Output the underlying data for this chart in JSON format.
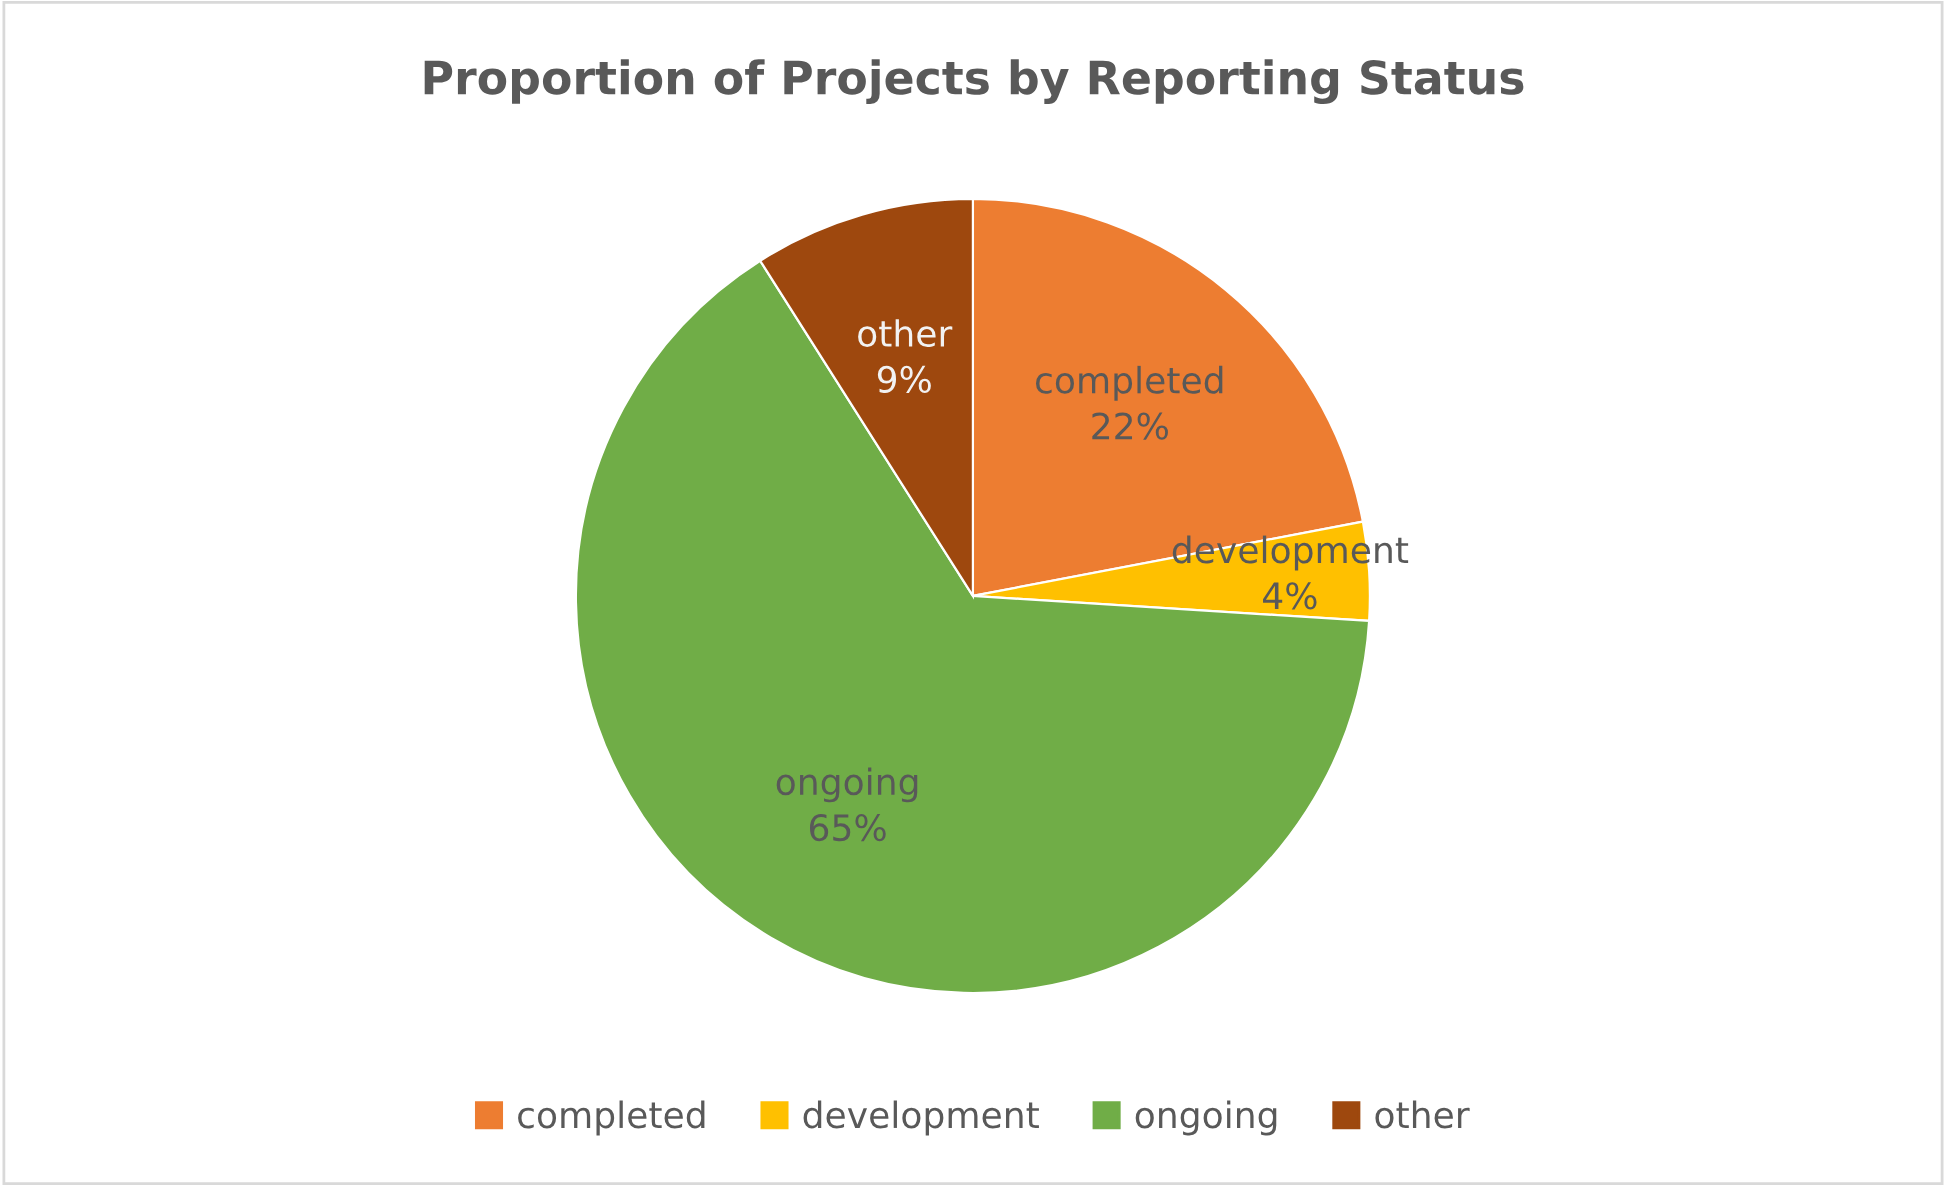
{
  "chart_data": {
    "type": "pie",
    "title": "Proportion of Projects by Reporting Status",
    "categories": [
      "completed",
      "development",
      "ongoing",
      "other"
    ],
    "values": [
      22,
      4,
      65,
      9
    ],
    "value_labels": [
      "22%",
      "4%",
      "65%",
      "9%"
    ],
    "colors": [
      "#ed7d31",
      "#ffc000",
      "#70ad47",
      "#9e480e"
    ],
    "legend": "bottom"
  }
}
